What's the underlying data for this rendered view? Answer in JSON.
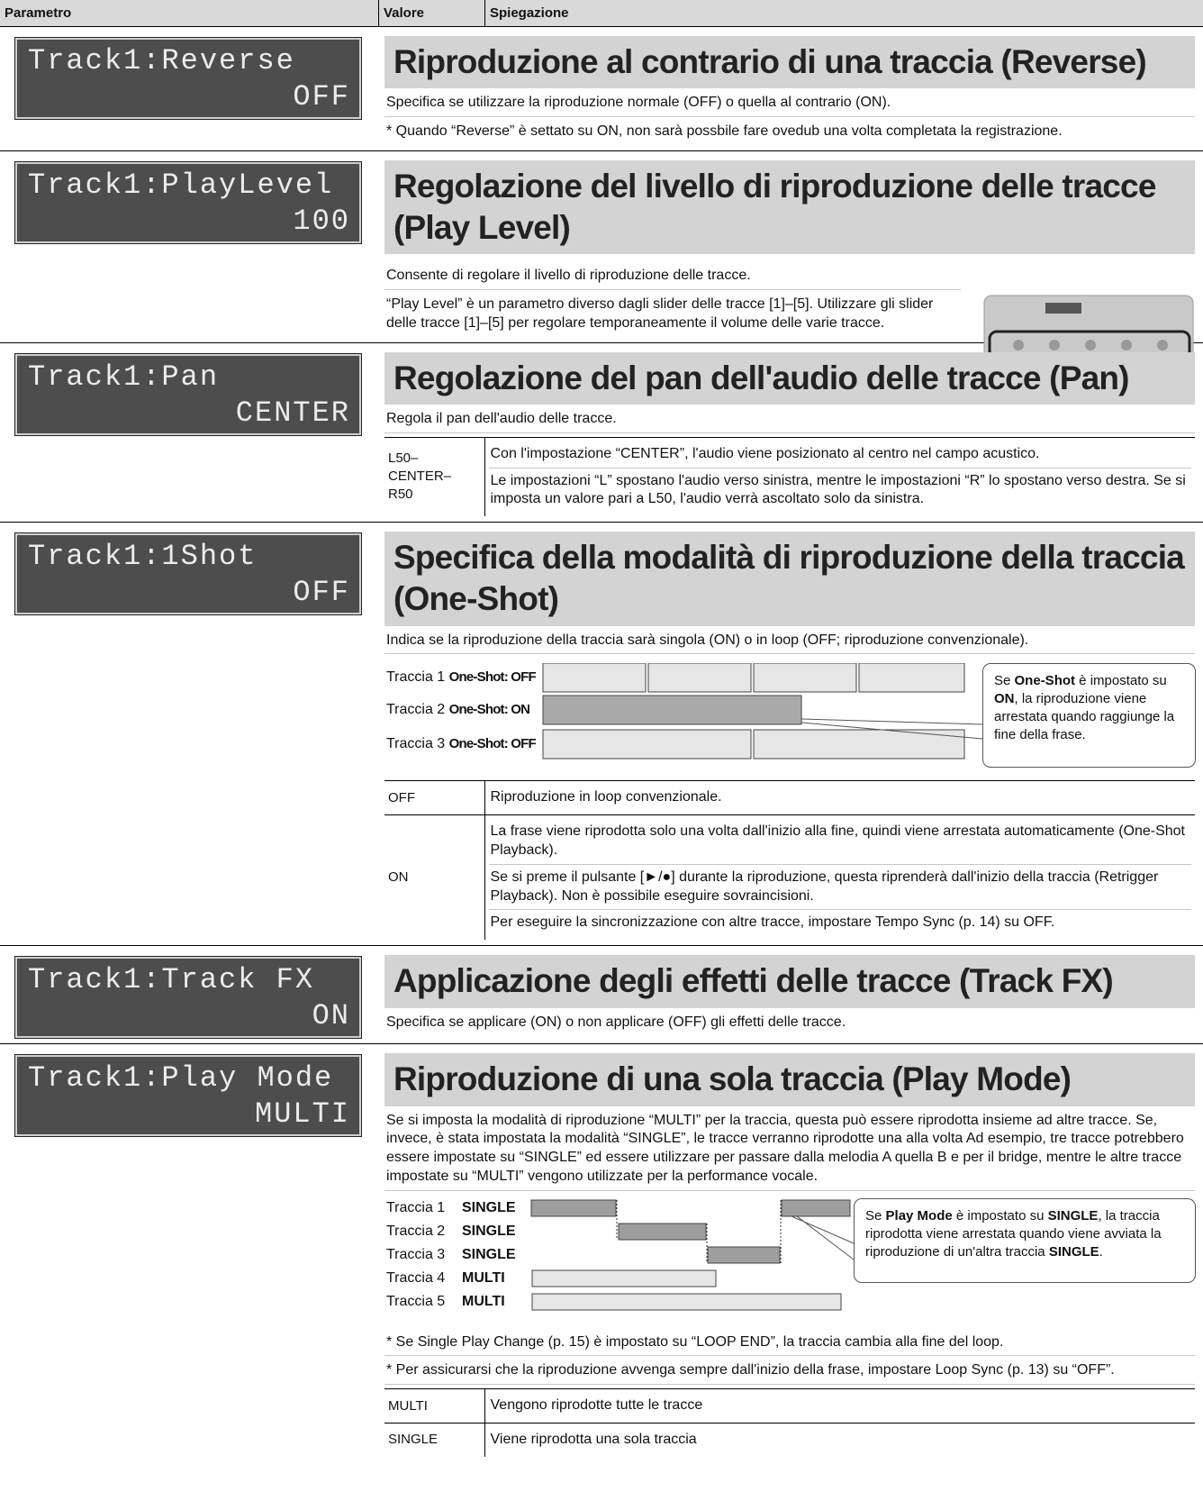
{
  "header": {
    "parameter": "Parametro",
    "value": "Valore",
    "explanation": "Spiegazione"
  },
  "sections": [
    {
      "display": [
        "Track1:Reverse",
        "OFF"
      ],
      "title": "Riproduzione al contrario di una traccia (Reverse)",
      "paragraphs": [
        "Specifica se utilizzare la riproduzione normale (OFF) o quella al contrario (ON).",
        "* Quando “Reverse” è settato su ON, non sarà possbile fare ovedub una volta completata la registrazione."
      ]
    },
    {
      "display": [
        "Track1:PlayLevel",
        "100"
      ],
      "title": "Regolazione del livello di riproduzione delle tracce (Play Level)",
      "paragraphs": [
        "Consente di regolare il livello di riproduzione delle tracce.",
        "“Play Level” è un parametro diverso dagli slider delle tracce [1]–[5]. Utilizzare gli slider delle tracce [1]–[5] per regolare temporaneamente il volume delle varie tracce."
      ]
    },
    {
      "display": [
        "Track1:Pan",
        "CENTER"
      ],
      "title": "Regolazione del pan dell'audio delle tracce (Pan)",
      "paragraphs": [
        "Regola il pan dell'audio delle tracce."
      ],
      "table": [
        {
          "value": [
            "L50–",
            "CENTER–",
            "R50"
          ],
          "explanation": [
            "Con l'impostazione “CENTER”, l'audio viene posizionato al centro nel campo acustico.",
            "Le impostazioni “L” spostano l'audio verso sinistra, mentre le impostazioni “R” lo spostano verso destra. Se si imposta un valore pari a L50, l'audio verrà ascoltato solo da sinistra."
          ]
        }
      ]
    },
    {
      "display": [
        "Track1:1Shot",
        "OFF"
      ],
      "title": "Specifica della modalità di riproduzione della traccia (One-Shot)",
      "paragraphs": [
        "Indica se la riproduzione della traccia sarà singola (ON) o in loop (OFF; riproduzione convenzionale)."
      ],
      "diagram": {
        "tracks": [
          {
            "label": "Traccia 1",
            "setting": "One-Shot: OFF"
          },
          {
            "label": "Traccia 2",
            "setting": "One-Shot: ON"
          },
          {
            "label": "Traccia 3",
            "setting": "One-Shot: OFF"
          }
        ],
        "callout": [
          "Se ",
          "One-Shot",
          " è impostato su ",
          "ON",
          ", la riproduzione viene arrestata quando raggiunge la fine della frase."
        ]
      },
      "table": [
        {
          "value": [
            "OFF"
          ],
          "explanation": [
            "Riproduzione in loop convenzionale."
          ]
        },
        {
          "value": [
            "ON"
          ],
          "explanation": [
            "La frase viene riprodotta solo una volta dall'inizio alla fine, quindi viene arrestata automaticamente (One-Shot Playback).",
            "Se si preme il pulsante [►/●] durante la riproduzione, questa riprenderà dall'inizio della traccia (Retrigger Playback). Non è possibile eseguire sovraincisioni.",
            "Per eseguire la sincronizzazione con altre tracce, impostare Tempo Sync (p. 14) su OFF."
          ]
        }
      ]
    },
    {
      "display": [
        "Track1:Track FX",
        "ON"
      ],
      "title": "Applicazione degli effetti delle tracce (Track FX)",
      "paragraphs": [
        "Specifica se applicare (ON) o non applicare (OFF) gli effetti delle tracce."
      ]
    },
    {
      "display": [
        "Track1:Play Mode",
        "MULTI"
      ],
      "title": "Riproduzione di una sola traccia (Play Mode)",
      "paragraphs": [
        "Se si imposta la modalità di riproduzione “MULTI” per la traccia, questa può essere riprodotta insieme ad altre tracce. Se, invece, è stata impostata la modalità “SINGLE”, le tracce verranno riprodotte una alla volta Ad esempio, tre tracce potrebbero essere impostate su “SINGLE” ed essere utilizzare per passare dalla melodia A quella B e per il bridge, mentre le altre tracce impostate su “MULTI” vengono utilizzate per la performance vocale."
      ],
      "diagram": {
        "tracks": [
          {
            "label": "Traccia 1",
            "setting": "SINGLE"
          },
          {
            "label": "Traccia 2",
            "setting": "SINGLE"
          },
          {
            "label": "Traccia 3",
            "setting": "SINGLE"
          },
          {
            "label": "Traccia 4",
            "setting": "MULTI"
          },
          {
            "label": "Traccia 5",
            "setting": "MULTI"
          }
        ],
        "callout": [
          "Se ",
          "Play Mode",
          " è impostato su ",
          "SINGLE",
          ", la traccia riprodotta viene arrestata quando viene avviata la riproduzione di un'altra traccia ",
          "SINGLE",
          "."
        ]
      },
      "notes": [
        "* Se Single Play Change (p. 15) è impostato su “LOOP END”, la traccia cambia alla fine del loop.",
        "* Per assicurarsi che la riproduzione avvenga sempre dall'inizio della frase, impostare Loop Sync (p. 13) su “OFF”."
      ],
      "table": [
        {
          "value": [
            "MULTI"
          ],
          "explanation": [
            "Vengono riprodotte tutte le tracce"
          ]
        },
        {
          "value": [
            "SINGLE"
          ],
          "explanation": [
            "Viene riprodotta una sola traccia"
          ]
        }
      ]
    }
  ]
}
